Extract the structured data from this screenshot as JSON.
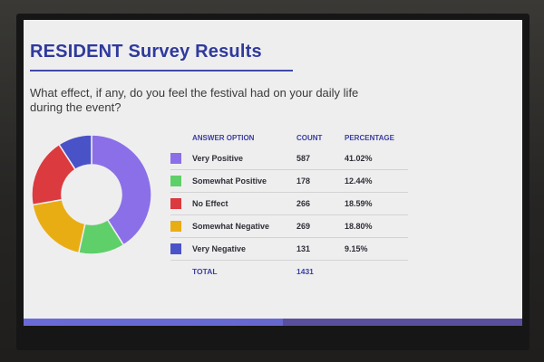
{
  "slide": {
    "title": "RESIDENT Survey Results",
    "question": "What effect, if any, do you feel the festival had on your daily life during the event?"
  },
  "table": {
    "headers": {
      "option": "ANSWER OPTION",
      "count": "COUNT",
      "percentage": "PERCENTAGE"
    },
    "rows": [
      {
        "option": "Very Positive",
        "count": "587",
        "percentage": "41.02%",
        "color": "#8b6fe8"
      },
      {
        "option": "Somewhat Positive",
        "count": "178",
        "percentage": "12.44%",
        "color": "#5fcf6a"
      },
      {
        "option": "No Effect",
        "count": "266",
        "percentage": "18.59%",
        "color": "#db3a3e"
      },
      {
        "option": "Somewhat Negative",
        "count": "269",
        "percentage": "18.80%",
        "color": "#e9ad14"
      },
      {
        "option": "Very Negative",
        "count": "131",
        "percentage": "9.15%",
        "color": "#4a52c8"
      }
    ],
    "total": {
      "label": "TOTAL",
      "count": "1431"
    }
  },
  "chart_data": {
    "type": "pie",
    "donut": true,
    "categories": [
      "Very Positive",
      "Somewhat Positive",
      "No Effect",
      "Somewhat Negative",
      "Very Negative"
    ],
    "values": [
      587,
      178,
      266,
      269,
      131
    ],
    "percentages": [
      41.02,
      12.44,
      18.59,
      18.8,
      9.15
    ],
    "colors": [
      "#8b6fe8",
      "#5fcf6a",
      "#db3a3e",
      "#e9ad14",
      "#4a52c8"
    ],
    "slice_order_clockwise_from_top": [
      "Very Positive",
      "Somewhat Positive",
      "Somewhat Negative",
      "No Effect",
      "Very Negative"
    ],
    "legend": "right"
  }
}
